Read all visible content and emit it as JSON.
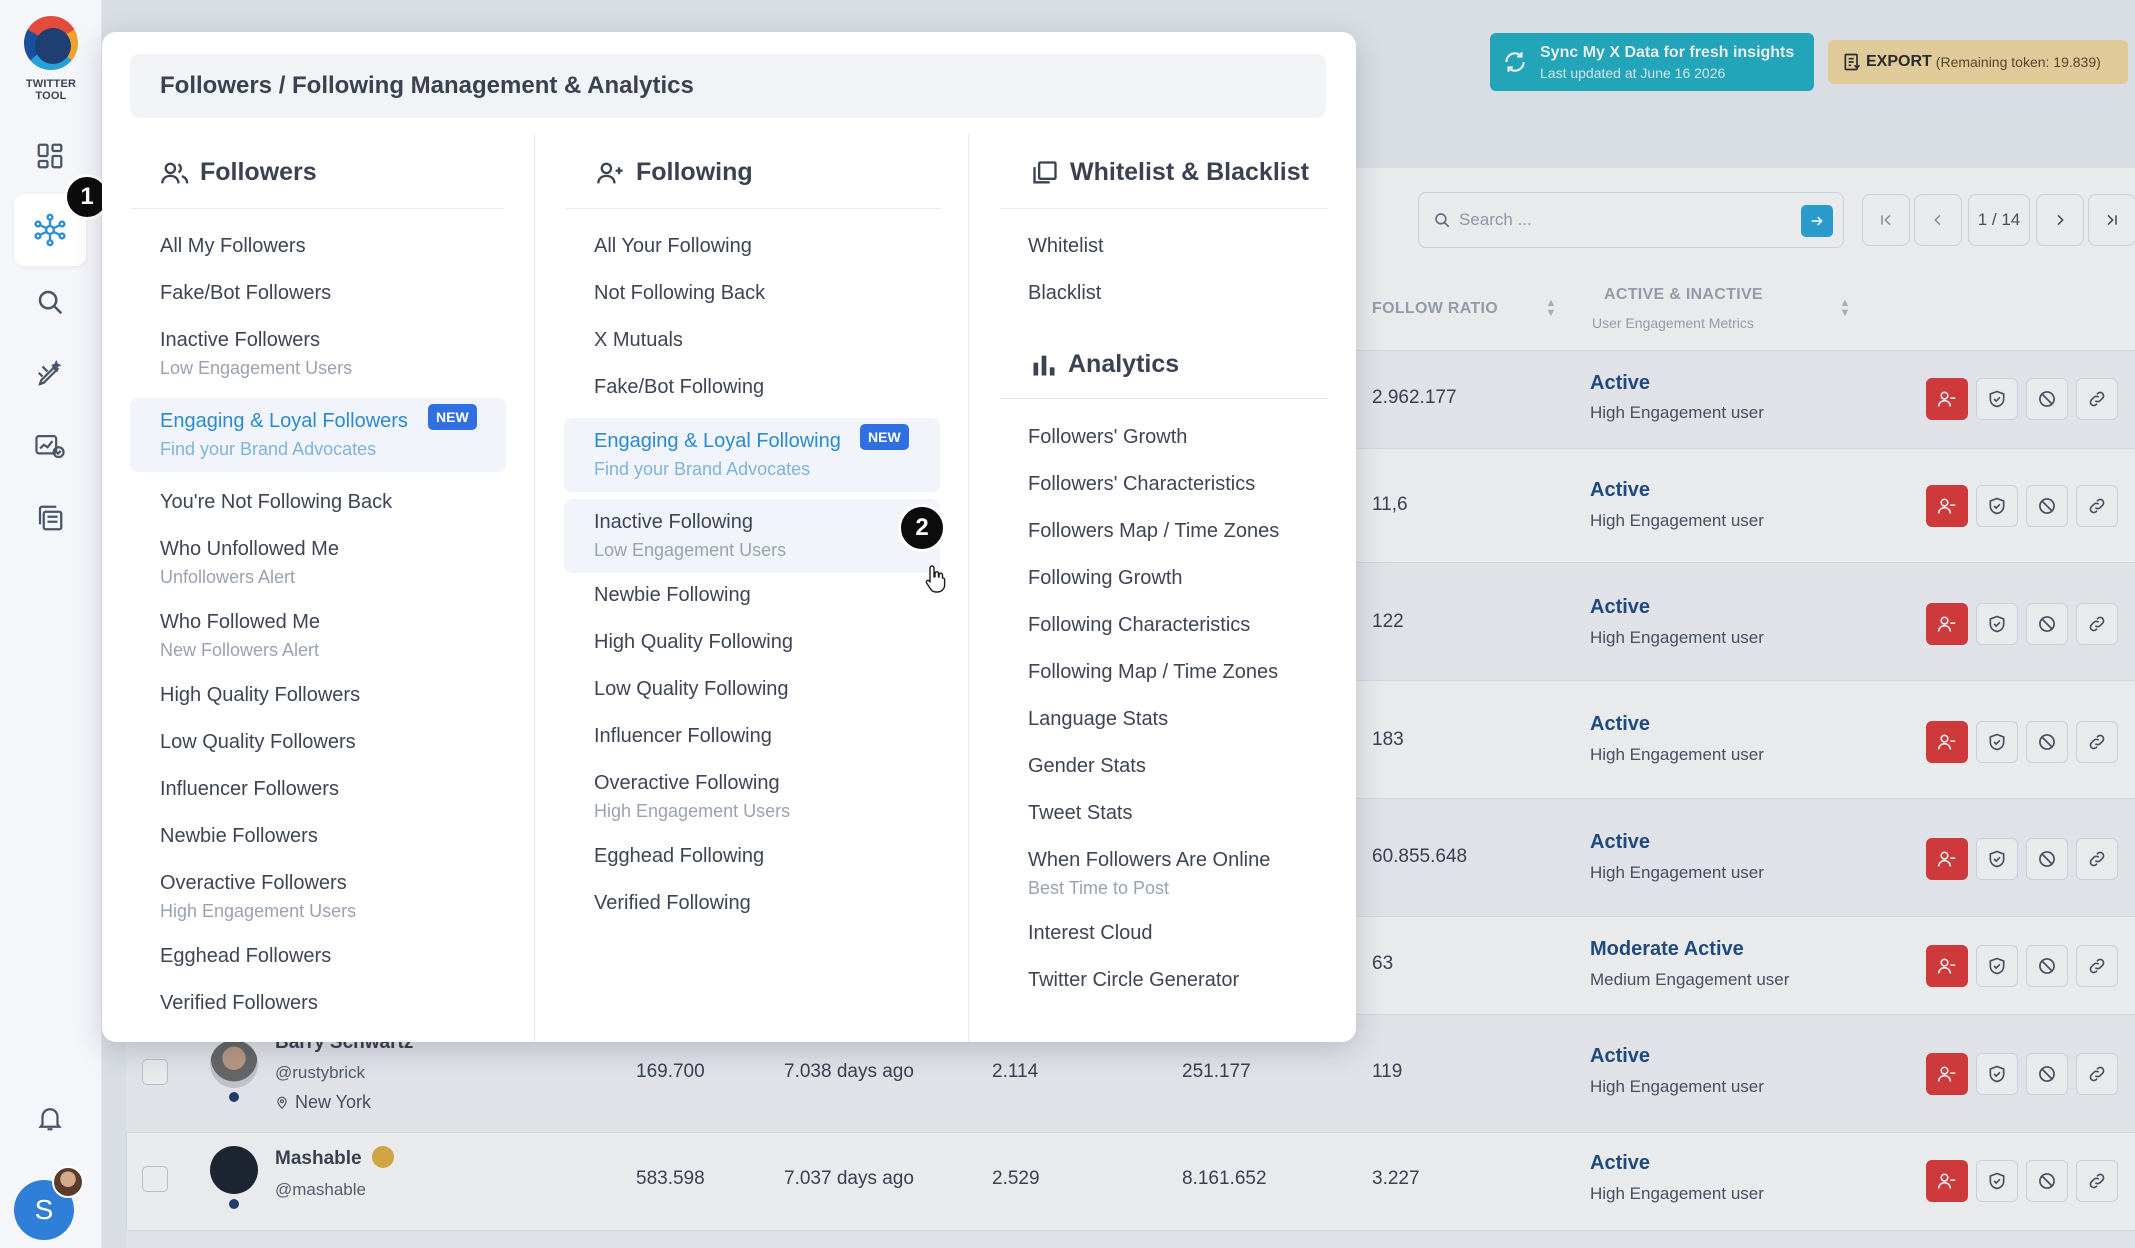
{
  "app": {
    "logo_text": "TWITTER TOOL"
  },
  "sidebar": {
    "step_badge": "1",
    "icons": [
      "dashboard-icon",
      "network-icon",
      "search-icon",
      "pen-sparkle-icon",
      "chart-check-icon",
      "copy-icon",
      "bell-icon"
    ],
    "user_initial": "S"
  },
  "header": {
    "sync": {
      "title": "Sync My X Data for fresh insights",
      "subtitle": "Last updated at June 16 2026"
    },
    "export": {
      "label": "EXPORT",
      "remaining": "(Remaining token: 19.839)"
    }
  },
  "toolbar": {
    "search_placeholder": "Search ...",
    "page_label": "1 / 14"
  },
  "table": {
    "columns": {
      "follow_ratio": "FOLLOW RATIO",
      "active_inactive": "ACTIVE & INACTIVE",
      "active_inactive_sub": "User Engagement Metrics"
    },
    "rows": [
      {
        "ratio": "2.962.177",
        "status": "Active",
        "status_sub": "High Engagement user"
      },
      {
        "ratio": "11,6",
        "status": "Active",
        "status_sub": "High Engagement user"
      },
      {
        "ratio": "122",
        "status": "Active",
        "status_sub": "High Engagement user"
      },
      {
        "ratio": "183",
        "status": "Active",
        "status_sub": "High Engagement user"
      },
      {
        "ratio": "60.855.648",
        "status": "Active",
        "status_sub": "High Engagement user"
      },
      {
        "ratio": "63",
        "status": "Moderate Active",
        "status_sub": "Medium Engagement user"
      },
      {
        "name": "Barry Schwartz",
        "handle": "@rustybrick",
        "location": "New York",
        "followers": "169.700",
        "age": "7.038 days ago",
        "c3": "2.114",
        "c4": "251.177",
        "ratio": "119",
        "status": "Active",
        "status_sub": "High Engagement user"
      },
      {
        "name": "Mashable",
        "handle": "@mashable",
        "followers": "583.598",
        "age": "7.037 days ago",
        "c3": "2.529",
        "c4": "8.161.652",
        "ratio": "3.227",
        "status": "Active",
        "status_sub": "High Engagement user"
      }
    ]
  },
  "menu": {
    "title": "Followers / Following Management & Analytics",
    "step_badge": "2",
    "followers": {
      "heading": "Followers",
      "items": [
        {
          "label": "All My Followers"
        },
        {
          "label": "Fake/Bot Followers"
        },
        {
          "label": "Inactive Followers",
          "sub": "Low Engagement Users"
        },
        {
          "label": "Engaging & Loyal Followers",
          "sub": "Find your Brand Advocates",
          "badge": "NEW"
        },
        {
          "label": "You're Not Following Back"
        },
        {
          "label": "Who Unfollowed Me",
          "sub": "Unfollowers Alert"
        },
        {
          "label": "Who Followed Me",
          "sub": "New Followers Alert"
        },
        {
          "label": "High Quality Followers"
        },
        {
          "label": "Low Quality Followers"
        },
        {
          "label": "Influencer Followers"
        },
        {
          "label": "Newbie Followers"
        },
        {
          "label": "Overactive Followers",
          "sub": "High Engagement Users"
        },
        {
          "label": "Egghead Followers"
        },
        {
          "label": "Verified Followers"
        }
      ]
    },
    "following": {
      "heading": "Following",
      "items": [
        {
          "label": "All Your Following"
        },
        {
          "label": "Not Following Back"
        },
        {
          "label": "X Mutuals"
        },
        {
          "label": "Fake/Bot Following"
        },
        {
          "label": "Engaging & Loyal Following",
          "sub": "Find your Brand Advocates",
          "badge": "NEW"
        },
        {
          "label": "Inactive Following",
          "sub": "Low Engagement Users"
        },
        {
          "label": "Newbie Following"
        },
        {
          "label": "High Quality Following"
        },
        {
          "label": "Low Quality Following"
        },
        {
          "label": "Influencer Following"
        },
        {
          "label": "Overactive Following",
          "sub": "High Engagement Users"
        },
        {
          "label": "Egghead Following"
        },
        {
          "label": "Verified Following"
        }
      ]
    },
    "lists": {
      "heading": "Whitelist & Blacklist",
      "items": [
        {
          "label": "Whitelist"
        },
        {
          "label": "Blacklist"
        }
      ]
    },
    "analytics": {
      "heading": "Analytics",
      "items": [
        {
          "label": "Followers' Growth"
        },
        {
          "label": "Followers' Characteristics"
        },
        {
          "label": "Followers Map / Time Zones"
        },
        {
          "label": "Following Growth"
        },
        {
          "label": "Following Characteristics"
        },
        {
          "label": "Following Map / Time Zones"
        },
        {
          "label": "Language Stats"
        },
        {
          "label": "Gender Stats"
        },
        {
          "label": "Tweet Stats"
        },
        {
          "label": "When Followers Are Online",
          "sub": "Best Time to Post"
        },
        {
          "label": "Interest Cloud"
        },
        {
          "label": "Twitter Circle Generator"
        }
      ]
    }
  },
  "colors": {
    "accent": "#2a8ad2",
    "danger": "#e13a3a",
    "sync": "#23b3c7",
    "export": "#f6dca3",
    "status": "#1e4d86"
  }
}
